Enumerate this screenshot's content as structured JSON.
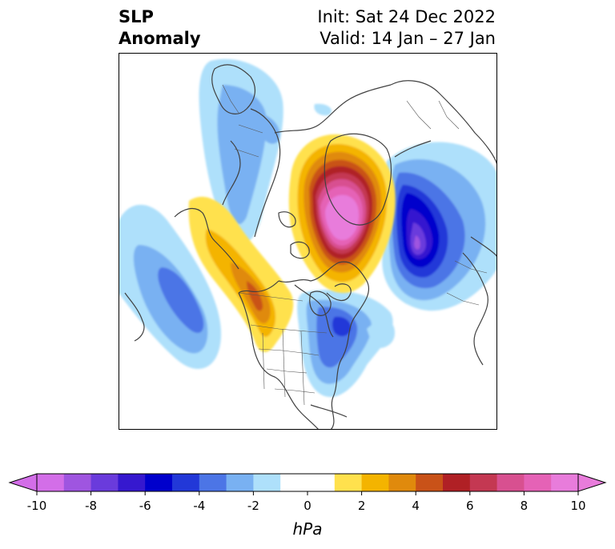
{
  "title": {
    "left_line1": "SLP",
    "left_line2": "Anomaly",
    "right_line1": "Init: Sat 24 Dec 2022",
    "right_line2": "Valid: 14 Jan – 27 Jan"
  },
  "map": {
    "projection": "polar-stereographic",
    "region": "Northern Hemisphere",
    "field": "sea level pressure anomaly",
    "features": [
      {
        "id": "arctic-high",
        "sign": "positive",
        "peak_hpa": 10
      },
      {
        "id": "west-coast-high",
        "sign": "positive",
        "peak_hpa": 4
      },
      {
        "id": "pacific-low",
        "sign": "negative",
        "peak_hpa": -6
      },
      {
        "id": "siberian-low",
        "sign": "negative",
        "peak_hpa": -9
      },
      {
        "id": "eastern-canada-low",
        "sign": "negative",
        "peak_hpa": -6
      },
      {
        "id": "europe-low",
        "sign": "negative",
        "peak_hpa": -3
      }
    ]
  },
  "colorbar": {
    "unit": "hPa",
    "levels": [
      -10,
      -9,
      -8,
      -7,
      -6,
      -5,
      -4,
      -3,
      -2,
      -1,
      1,
      2,
      3,
      4,
      5,
      6,
      7,
      8,
      9,
      10
    ],
    "colors": [
      "#d36ee8",
      "#9f55e0",
      "#6a3bdc",
      "#3618cf",
      "#0000cc",
      "#2238d8",
      "#4c75e6",
      "#79b1f2",
      "#aee0fb",
      "#ffffff",
      "#ffe14d",
      "#f4b400",
      "#e08a0c",
      "#c95218",
      "#b02025",
      "#c43852",
      "#d85090",
      "#e562b6",
      "#e87cdb"
    ],
    "ticks": [
      "-10",
      "-8",
      "-6",
      "-4",
      "-2",
      "0",
      "2",
      "4",
      "6",
      "8",
      "10"
    ],
    "extend": "both"
  }
}
